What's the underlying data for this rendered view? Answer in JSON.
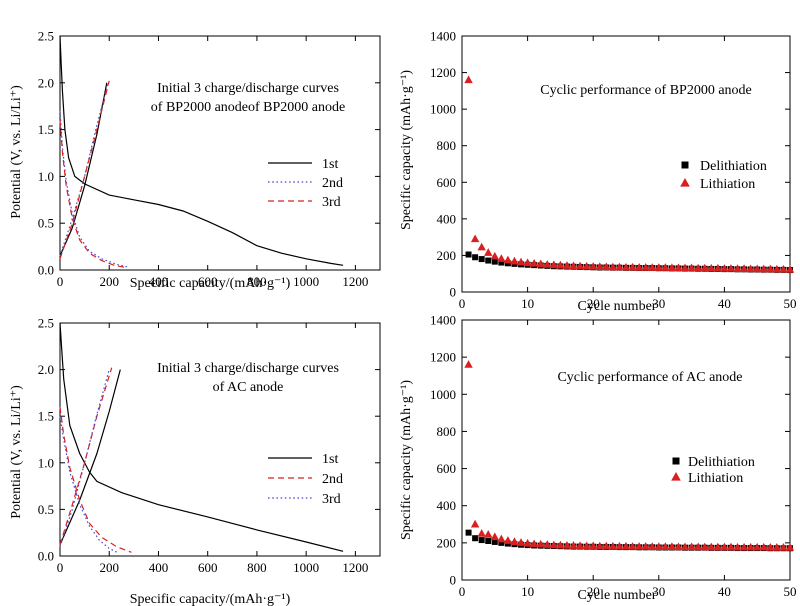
{
  "chart_data": [
    {
      "id": "bp-voltage",
      "type": "line",
      "title_lines": [
        "Initial 3 charge/discharge curves",
        "of BP2000 anodeof BP2000 anode"
      ],
      "xlabel": "Specific capacity/(mAh·g⁻¹)",
      "ylabel": "Potential (V, vs. Li/Li⁺)",
      "xlim": [
        0,
        1300
      ],
      "ylim": [
        0,
        2.5
      ],
      "xticks": [
        "0",
        "200",
        "400",
        "600",
        "800",
        "1000",
        "1200"
      ],
      "yticks": [
        "0.0",
        "0.5",
        "1.0",
        "1.5",
        "2.0",
        "2.5"
      ],
      "legend_position": "right",
      "series": [
        {
          "name": "1st",
          "color": "#000000",
          "dash": "solid",
          "discharge": [
            [
              0,
              2.5
            ],
            [
              5,
              2.2
            ],
            [
              10,
              1.9
            ],
            [
              20,
              1.5
            ],
            [
              35,
              1.2
            ],
            [
              60,
              1.0
            ],
            [
              100,
              0.92
            ],
            [
              200,
              0.8
            ],
            [
              300,
              0.75
            ],
            [
              400,
              0.7
            ],
            [
              500,
              0.63
            ],
            [
              600,
              0.52
            ],
            [
              700,
              0.4
            ],
            [
              800,
              0.26
            ],
            [
              900,
              0.18
            ],
            [
              1000,
              0.12
            ],
            [
              1100,
              0.07
            ],
            [
              1150,
              0.05
            ]
          ],
          "charge": [
            [
              0,
              0.15
            ],
            [
              50,
              0.45
            ],
            [
              100,
              0.9
            ],
            [
              150,
              1.45
            ],
            [
              190,
              2.0
            ]
          ]
        },
        {
          "name": "2nd",
          "color": "#4a4ad8",
          "dash": "dotted",
          "discharge": [
            [
              0,
              1.7
            ],
            [
              10,
              1.3
            ],
            [
              25,
              0.95
            ],
            [
              50,
              0.6
            ],
            [
              80,
              0.35
            ],
            [
              120,
              0.2
            ],
            [
              170,
              0.12
            ],
            [
              230,
              0.06
            ],
            [
              280,
              0.03
            ]
          ],
          "charge": [
            [
              0,
              0.15
            ],
            [
              50,
              0.55
            ],
            [
              100,
              1.0
            ],
            [
              150,
              1.55
            ],
            [
              195,
              2.0
            ]
          ]
        },
        {
          "name": "3rd",
          "color": "#d82020",
          "dash": "dashed",
          "discharge": [
            [
              0,
              1.6
            ],
            [
              10,
              1.25
            ],
            [
              25,
              0.9
            ],
            [
              50,
              0.55
            ],
            [
              80,
              0.32
            ],
            [
              120,
              0.18
            ],
            [
              170,
              0.1
            ],
            [
              220,
              0.05
            ],
            [
              260,
              0.03
            ]
          ],
          "charge": [
            [
              0,
              0.12
            ],
            [
              50,
              0.5
            ],
            [
              100,
              1.0
            ],
            [
              150,
              1.5
            ],
            [
              200,
              2.02
            ]
          ]
        }
      ]
    },
    {
      "id": "bp-cycle",
      "type": "scatter",
      "title_lines": [
        "Cyclic performance of BP2000 anode"
      ],
      "xlabel": "Cycle number",
      "ylabel": "Specific capacity (mAh·g⁻¹)",
      "xlim": [
        0,
        50
      ],
      "ylim": [
        0,
        1400
      ],
      "xticks": [
        "0",
        "10",
        "20",
        "30",
        "40",
        "50"
      ],
      "yticks": [
        "0",
        "200",
        "400",
        "600",
        "800",
        "1000",
        "1200",
        "1400"
      ],
      "legend_position": "right",
      "series": [
        {
          "name": "Delithiation",
          "marker": "square",
          "color": "#000000",
          "values": [
            205,
            190,
            180,
            172,
            166,
            161,
            157,
            154,
            151,
            149,
            147,
            145,
            143,
            141,
            140,
            139,
            138,
            137,
            136,
            135,
            134,
            134,
            133,
            133,
            132,
            132,
            131,
            131,
            131,
            130,
            130,
            129,
            129,
            128,
            128,
            127,
            127,
            126,
            126,
            125,
            125,
            124,
            124,
            123,
            123,
            122,
            122,
            121,
            121,
            120
          ]
        },
        {
          "name": "Lithiation",
          "marker": "triangle",
          "color": "#d82020",
          "values": [
            1160,
            290,
            245,
            215,
            195,
            182,
            174,
            168,
            163,
            159,
            156,
            153,
            150,
            148,
            146,
            144,
            142,
            141,
            140,
            139,
            138,
            137,
            136,
            136,
            135,
            135,
            134,
            134,
            133,
            133,
            133,
            132,
            132,
            131,
            131,
            130,
            130,
            129,
            129,
            128,
            128,
            127,
            127,
            126,
            126,
            125,
            125,
            124,
            124,
            123
          ]
        }
      ]
    },
    {
      "id": "ac-voltage",
      "type": "line",
      "title_lines": [
        "Initial 3 charge/discharge curves",
        "of AC anode"
      ],
      "xlabel": "Specific capacity/(mAh·g⁻¹)",
      "ylabel": "Potential (V, vs. Li/Li⁺)",
      "xlim": [
        0,
        1300
      ],
      "ylim": [
        0,
        2.5
      ],
      "xticks": [
        "0",
        "200",
        "400",
        "600",
        "800",
        "1000",
        "1200"
      ],
      "yticks": [
        "0.0",
        "0.5",
        "1.0",
        "1.5",
        "2.0",
        "2.5"
      ],
      "legend_position": "right",
      "series": [
        {
          "name": "1st",
          "color": "#000000",
          "dash": "solid",
          "discharge": [
            [
              0,
              2.5
            ],
            [
              5,
              2.3
            ],
            [
              15,
              1.9
            ],
            [
              40,
              1.4
            ],
            [
              80,
              1.1
            ],
            [
              120,
              0.9
            ],
            [
              150,
              0.8
            ],
            [
              250,
              0.68
            ],
            [
              400,
              0.55
            ],
            [
              600,
              0.42
            ],
            [
              800,
              0.28
            ],
            [
              1000,
              0.15
            ],
            [
              1150,
              0.05
            ]
          ],
          "charge": [
            [
              0,
              0.12
            ],
            [
              80,
              0.6
            ],
            [
              150,
              1.1
            ],
            [
              200,
              1.55
            ],
            [
              245,
              2.0
            ]
          ]
        },
        {
          "name": "2nd",
          "color": "#d82020",
          "dash": "dashed",
          "discharge": [
            [
              0,
              1.6
            ],
            [
              15,
              1.3
            ],
            [
              40,
              0.95
            ],
            [
              80,
              0.6
            ],
            [
              120,
              0.35
            ],
            [
              170,
              0.2
            ],
            [
              230,
              0.1
            ],
            [
              290,
              0.04
            ]
          ],
          "charge": [
            [
              0,
              0.12
            ],
            [
              50,
              0.55
            ],
            [
              100,
              1.0
            ],
            [
              150,
              1.5
            ],
            [
              210,
              2.02
            ]
          ]
        },
        {
          "name": "3rd",
          "color": "#4a4ad8",
          "dash": "dotted",
          "discharge": [
            [
              0,
              1.5
            ],
            [
              15,
              1.25
            ],
            [
              40,
              0.9
            ],
            [
              80,
              0.55
            ],
            [
              120,
              0.32
            ],
            [
              160,
              0.17
            ],
            [
              200,
              0.08
            ],
            [
              240,
              0.03
            ]
          ],
          "charge": [
            [
              0,
              0.1
            ],
            [
              50,
              0.5
            ],
            [
              100,
              1.0
            ],
            [
              150,
              1.52
            ],
            [
              200,
              2.0
            ]
          ]
        }
      ]
    },
    {
      "id": "ac-cycle",
      "type": "scatter",
      "title_lines": [
        "Cyclic performance of AC anode"
      ],
      "xlabel": "Cycle number",
      "ylabel": "Specific capacity (mAh·g⁻¹)",
      "xlim": [
        0,
        50
      ],
      "ylim": [
        0,
        1400
      ],
      "xticks": [
        "0",
        "10",
        "20",
        "30",
        "40",
        "50"
      ],
      "yticks": [
        "0",
        "200",
        "400",
        "600",
        "800",
        "1000",
        "1200",
        "1400"
      ],
      "legend_position": "right",
      "series": [
        {
          "name": "Delithiation",
          "marker": "square",
          "color": "#000000",
          "values": [
            255,
            225,
            215,
            210,
            205,
            200,
            196,
            193,
            190,
            188,
            186,
            185,
            184,
            183,
            182,
            181,
            180,
            180,
            179,
            179,
            178,
            178,
            178,
            177,
            177,
            177,
            176,
            176,
            176,
            175,
            175,
            175,
            175,
            174,
            174,
            174,
            174,
            173,
            173,
            173,
            173,
            172,
            172,
            172,
            172,
            172,
            171,
            171,
            171,
            171
          ]
        },
        {
          "name": "Lithiation",
          "marker": "triangle",
          "color": "#d82020",
          "values": [
            1160,
            300,
            250,
            245,
            232,
            220,
            212,
            206,
            201,
            197,
            194,
            192,
            190,
            188,
            187,
            186,
            185,
            184,
            183,
            183,
            182,
            182,
            181,
            181,
            181,
            180,
            180,
            180,
            179,
            179,
            179,
            179,
            178,
            178,
            178,
            178,
            177,
            177,
            177,
            177,
            177,
            176,
            176,
            176,
            176,
            176,
            175,
            175,
            175,
            175
          ]
        }
      ]
    }
  ]
}
